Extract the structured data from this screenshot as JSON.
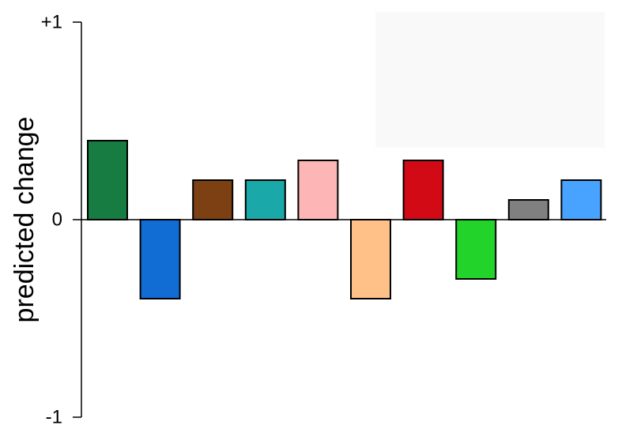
{
  "chart_data": {
    "type": "bar",
    "title": "",
    "xlabel": "",
    "ylabel": "predicted change",
    "ylim": [
      -1,
      1
    ],
    "y_ticks": [
      {
        "value": 1,
        "label": "+1"
      },
      {
        "value": 0,
        "label": "0"
      },
      {
        "value": -1,
        "label": "-1"
      }
    ],
    "grid": false,
    "legend": "none",
    "values": [
      0.4,
      -0.4,
      0.2,
      0.2,
      0.3,
      -0.4,
      0.3,
      -0.3,
      0.1,
      0.2
    ],
    "colors": [
      "#167C41",
      "#116CD4",
      "#7C4012",
      "#1AA8A8",
      "#FDB5B5",
      "#FFC187",
      "#D10A16",
      "#22D42A",
      "#808080",
      "#48A2FF"
    ]
  }
}
